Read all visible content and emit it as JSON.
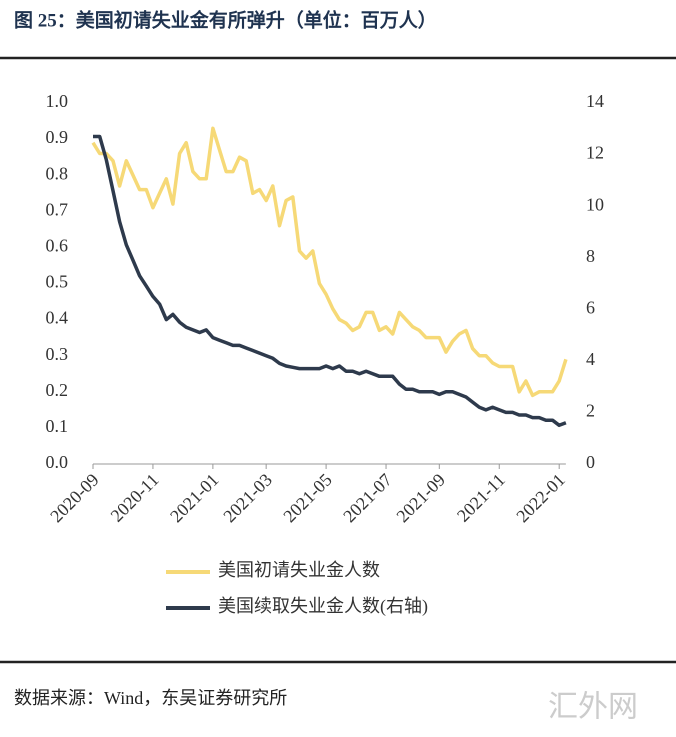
{
  "chart_data": {
    "type": "line",
    "title": "图 25：美国初请失业金有所弹升（单位：百万人）",
    "categories": [
      "2020-09",
      null,
      null,
      null,
      null,
      null,
      null,
      null,
      null,
      "2020-11",
      null,
      null,
      null,
      null,
      null,
      null,
      null,
      null,
      "2021-01",
      null,
      null,
      null,
      null,
      null,
      null,
      null,
      "2021-03",
      null,
      null,
      null,
      null,
      null,
      null,
      null,
      null,
      "2021-05",
      null,
      null,
      null,
      null,
      null,
      null,
      null,
      null,
      "2021-07",
      null,
      null,
      null,
      null,
      null,
      null,
      null,
      "2021-09",
      null,
      null,
      null,
      null,
      null,
      null,
      null,
      null,
      "2021-11",
      null,
      null,
      null,
      null,
      null,
      null,
      null,
      null,
      "2022-01",
      null
    ],
    "series": [
      {
        "name": "美国初请失业金人数",
        "color": "#f6d977",
        "axis": "y",
        "values": [
          0.89,
          0.86,
          0.86,
          0.84,
          0.77,
          0.84,
          0.8,
          0.76,
          0.76,
          0.71,
          0.75,
          0.79,
          0.72,
          0.86,
          0.89,
          0.81,
          0.79,
          0.79,
          0.93,
          0.87,
          0.81,
          0.81,
          0.85,
          0.84,
          0.75,
          0.76,
          0.73,
          0.77,
          0.66,
          0.73,
          0.74,
          0.59,
          0.57,
          0.59,
          0.5,
          0.47,
          0.43,
          0.4,
          0.39,
          0.37,
          0.38,
          0.42,
          0.42,
          0.37,
          0.38,
          0.36,
          0.42,
          0.4,
          0.38,
          0.37,
          0.35,
          0.35,
          0.35,
          0.31,
          0.34,
          0.36,
          0.37,
          0.32,
          0.3,
          0.3,
          0.28,
          0.27,
          0.27,
          0.27,
          0.2,
          0.23,
          0.19,
          0.2,
          0.2,
          0.2,
          0.23,
          0.29
        ]
      },
      {
        "name": "美国续取失业金人数(右轴)",
        "color": "#2e3a4c",
        "axis": "y2",
        "values": [
          12.7,
          12.7,
          11.8,
          10.6,
          9.4,
          8.5,
          7.9,
          7.3,
          6.9,
          6.5,
          6.2,
          5.6,
          5.8,
          5.5,
          5.3,
          5.2,
          5.1,
          5.2,
          4.9,
          4.8,
          4.7,
          4.6,
          4.6,
          4.5,
          4.4,
          4.3,
          4.2,
          4.1,
          3.9,
          3.8,
          3.75,
          3.7,
          3.7,
          3.7,
          3.7,
          3.8,
          3.7,
          3.8,
          3.6,
          3.6,
          3.5,
          3.6,
          3.5,
          3.4,
          3.4,
          3.4,
          3.1,
          2.9,
          2.9,
          2.8,
          2.8,
          2.8,
          2.7,
          2.8,
          2.8,
          2.7,
          2.6,
          2.4,
          2.2,
          2.1,
          2.2,
          2.1,
          2.0,
          2.0,
          1.9,
          1.9,
          1.8,
          1.8,
          1.7,
          1.7,
          1.5,
          1.6
        ]
      }
    ],
    "ylim": [
      0,
      1
    ],
    "yticks": [
      {
        "value": 0,
        "label": "0.0"
      },
      0.1,
      0.2,
      0.3,
      0.4,
      0.5,
      0.6,
      0.7,
      0.8,
      0.9,
      {
        "value": 1,
        "label": "1.0"
      }
    ],
    "y2lim": [
      0,
      14
    ],
    "y2ticks": [
      0,
      2,
      4,
      6,
      8,
      10,
      12,
      14
    ],
    "grid": false,
    "legend": "bottom"
  },
  "source": "数据来源：Wind，东吴证券研究所",
  "watermark": "汇外网"
}
